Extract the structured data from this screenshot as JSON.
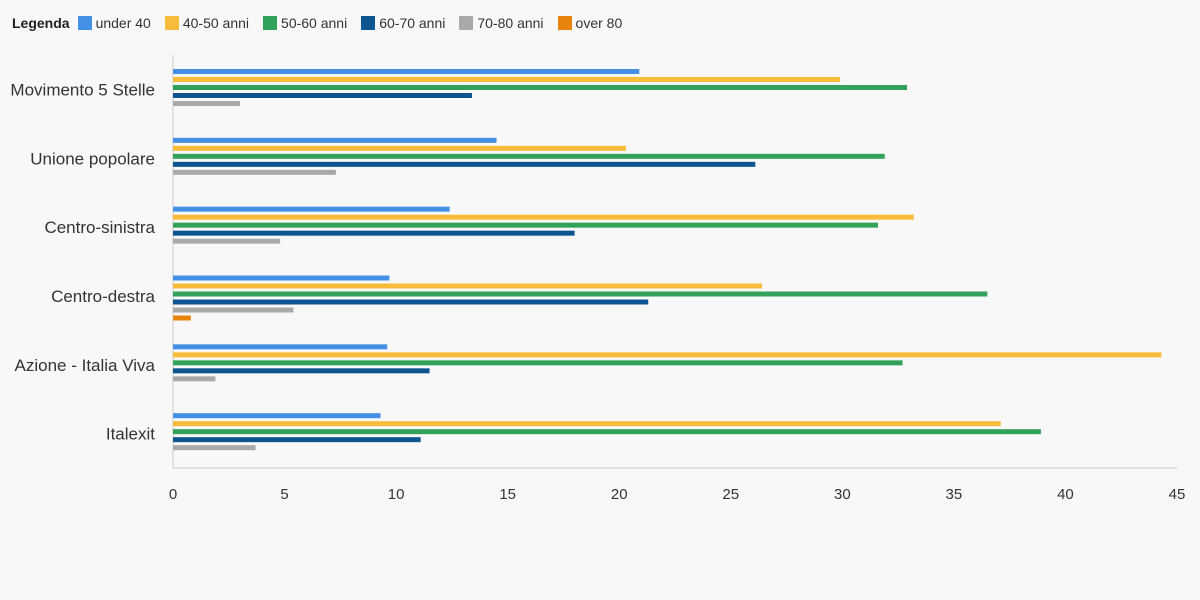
{
  "legend": {
    "title": "Legenda"
  },
  "chart_data": {
    "type": "bar",
    "orientation": "horizontal",
    "categories": [
      "Movimento 5 Stelle",
      "Unione popolare",
      "Centro-sinistra",
      "Centro-destra",
      "Azione - Italia Viva",
      "Italexit"
    ],
    "series": [
      {
        "name": "under 40",
        "color": "#4390e6",
        "values": [
          20.9,
          14.5,
          12.4,
          9.7,
          9.6,
          9.3
        ]
      },
      {
        "name": "40-50 anni",
        "color": "#f9bc3a",
        "values": [
          29.9,
          20.3,
          33.2,
          26.4,
          44.3,
          37.1
        ]
      },
      {
        "name": "50-60 anni",
        "color": "#32a25a",
        "values": [
          32.9,
          31.9,
          31.6,
          36.5,
          32.7,
          38.9
        ]
      },
      {
        "name": "60-70 anni",
        "color": "#0d5591",
        "values": [
          13.4,
          26.1,
          18.0,
          21.3,
          11.5,
          11.1
        ]
      },
      {
        "name": "70-80 anni",
        "color": "#a9a9a9",
        "values": [
          3.0,
          7.3,
          4.8,
          5.4,
          1.9,
          3.7
        ]
      },
      {
        "name": "over 80",
        "color": "#e8840c",
        "values": [
          0,
          0,
          0,
          0.8,
          0,
          0
        ]
      }
    ],
    "xlim": [
      0,
      45
    ],
    "ticks": [
      0,
      5,
      10,
      15,
      20,
      25,
      30,
      35,
      40,
      45
    ],
    "grid": false,
    "legend_position": "top-left"
  }
}
